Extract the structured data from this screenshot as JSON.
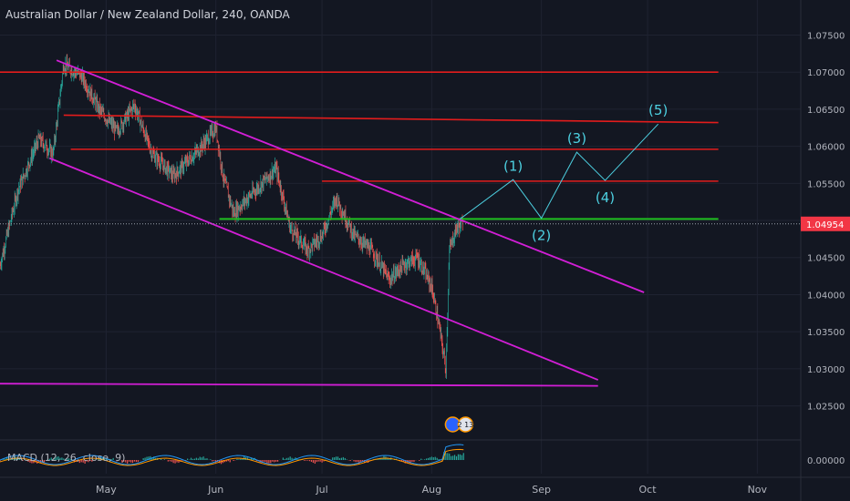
{
  "header": {
    "title": "Australian Dollar / New Zealand Dollar, 240, OANDA"
  },
  "indicator": {
    "label": "MACD (12, 26, close, 9)"
  },
  "event_badge": {
    "count": "2 13"
  },
  "colors": {
    "background": "#131722",
    "grid": "#1f2331",
    "candle_up": "#26a69a",
    "candle_down": "#ef5350",
    "resistance": "#e31c1c",
    "support": "#1fbf1f",
    "channel": "#d21ed6",
    "wave": "#4dd0e1",
    "price_tag": "#f23645",
    "axis_text": "#b2b5be"
  },
  "chart_data": {
    "type": "candlestick",
    "title": "Australian Dollar / New Zealand Dollar, 240, OANDA",
    "x_ticks": [
      "May",
      "Jun",
      "Jul",
      "Aug",
      "Sep",
      "Oct",
      "Nov"
    ],
    "y_ticks": [
      "1.07500",
      "1.07000",
      "1.06500",
      "1.06000",
      "1.05500",
      "1.05000",
      "1.04500",
      "1.04000",
      "1.03500",
      "1.03000",
      "1.02500"
    ],
    "ylim": [
      1.022,
      1.0785
    ],
    "last_price": "1.04954",
    "series": [
      {
        "kind": "price-path",
        "points": [
          [
            "Apr 1",
            1.044
          ],
          [
            "Apr 6",
            1.054
          ],
          [
            "Apr 12",
            1.061
          ],
          [
            "Apr 16",
            1.059
          ],
          [
            "Apr 19",
            1.071
          ],
          [
            "Apr 24",
            1.0695
          ],
          [
            "Apr 29",
            1.065
          ],
          [
            "May 4",
            1.062
          ],
          [
            "May 9",
            1.0655
          ],
          [
            "May 14",
            1.059
          ],
          [
            "May 20",
            1.056
          ],
          [
            "May 24",
            1.058
          ],
          [
            "May 28",
            1.06
          ],
          [
            "Jun 1",
            1.0625
          ],
          [
            "Jun 3",
            1.056
          ],
          [
            "Jun 6",
            1.051
          ],
          [
            "Jun 12",
            1.054
          ],
          [
            "Jun 18",
            1.057
          ],
          [
            "Jun 22",
            1.049
          ],
          [
            "Jun 27",
            1.046
          ],
          [
            "Jul 1",
            1.048
          ],
          [
            "Jul 5",
            1.053
          ],
          [
            "Jul 10",
            1.048
          ],
          [
            "Jul 15",
            1.046
          ],
          [
            "Jul 20",
            1.042
          ],
          [
            "Jul 24",
            1.044
          ],
          [
            "Jul 28",
            1.045
          ],
          [
            "Aug 1",
            1.041
          ],
          [
            "Aug 3",
            1.036
          ],
          [
            "Aug 5",
            1.03
          ],
          [
            "Aug 6",
            1.046
          ],
          [
            "Aug 8",
            1.049
          ],
          [
            "Aug 10",
            1.0495
          ]
        ]
      }
    ],
    "resistance_lines": [
      {
        "from": [
          "Mar 31",
          1.07
        ],
        "to": [
          "Oct 21",
          1.07
        ]
      },
      {
        "from": [
          "Apr 19",
          1.0642
        ],
        "to": [
          "Oct 21",
          1.0632
        ]
      },
      {
        "from": [
          "Apr 21",
          1.0596
        ],
        "to": [
          "Oct 21",
          1.0596
        ]
      },
      {
        "from": [
          "Jul 1",
          1.0553
        ],
        "to": [
          "Oct 21",
          1.0553
        ]
      }
    ],
    "support_line": {
      "from": [
        "Jun 2",
        1.0502
      ],
      "to": [
        "Oct 21",
        1.0502
      ]
    },
    "channel_lines": [
      {
        "from": [
          "Apr 17",
          1.0716
        ],
        "to": [
          "Sep 30",
          1.0403
        ]
      },
      {
        "from": [
          "Apr 15",
          1.0584
        ],
        "to": [
          "Sep 17",
          1.0285
        ]
      },
      {
        "from": [
          "Mar 31",
          1.028
        ],
        "to": [
          "Sep 17",
          1.0277
        ]
      }
    ],
    "projected_waves": [
      {
        "label": "",
        "x": "Aug 9",
        "y": 1.0502
      },
      {
        "label": "(1)",
        "x": "Aug 24",
        "y": 1.0555
      },
      {
        "label": "(2)",
        "x": "Sep 1",
        "y": 1.0503
      },
      {
        "label": "(3)",
        "x": "Sep 11",
        "y": 1.0592
      },
      {
        "label": "(4)",
        "x": "Sep 19",
        "y": 1.0554
      },
      {
        "label": "(5)",
        "x": "Oct 4",
        "y": 1.063
      }
    ],
    "macd_ticks": [
      "0.00000"
    ]
  }
}
